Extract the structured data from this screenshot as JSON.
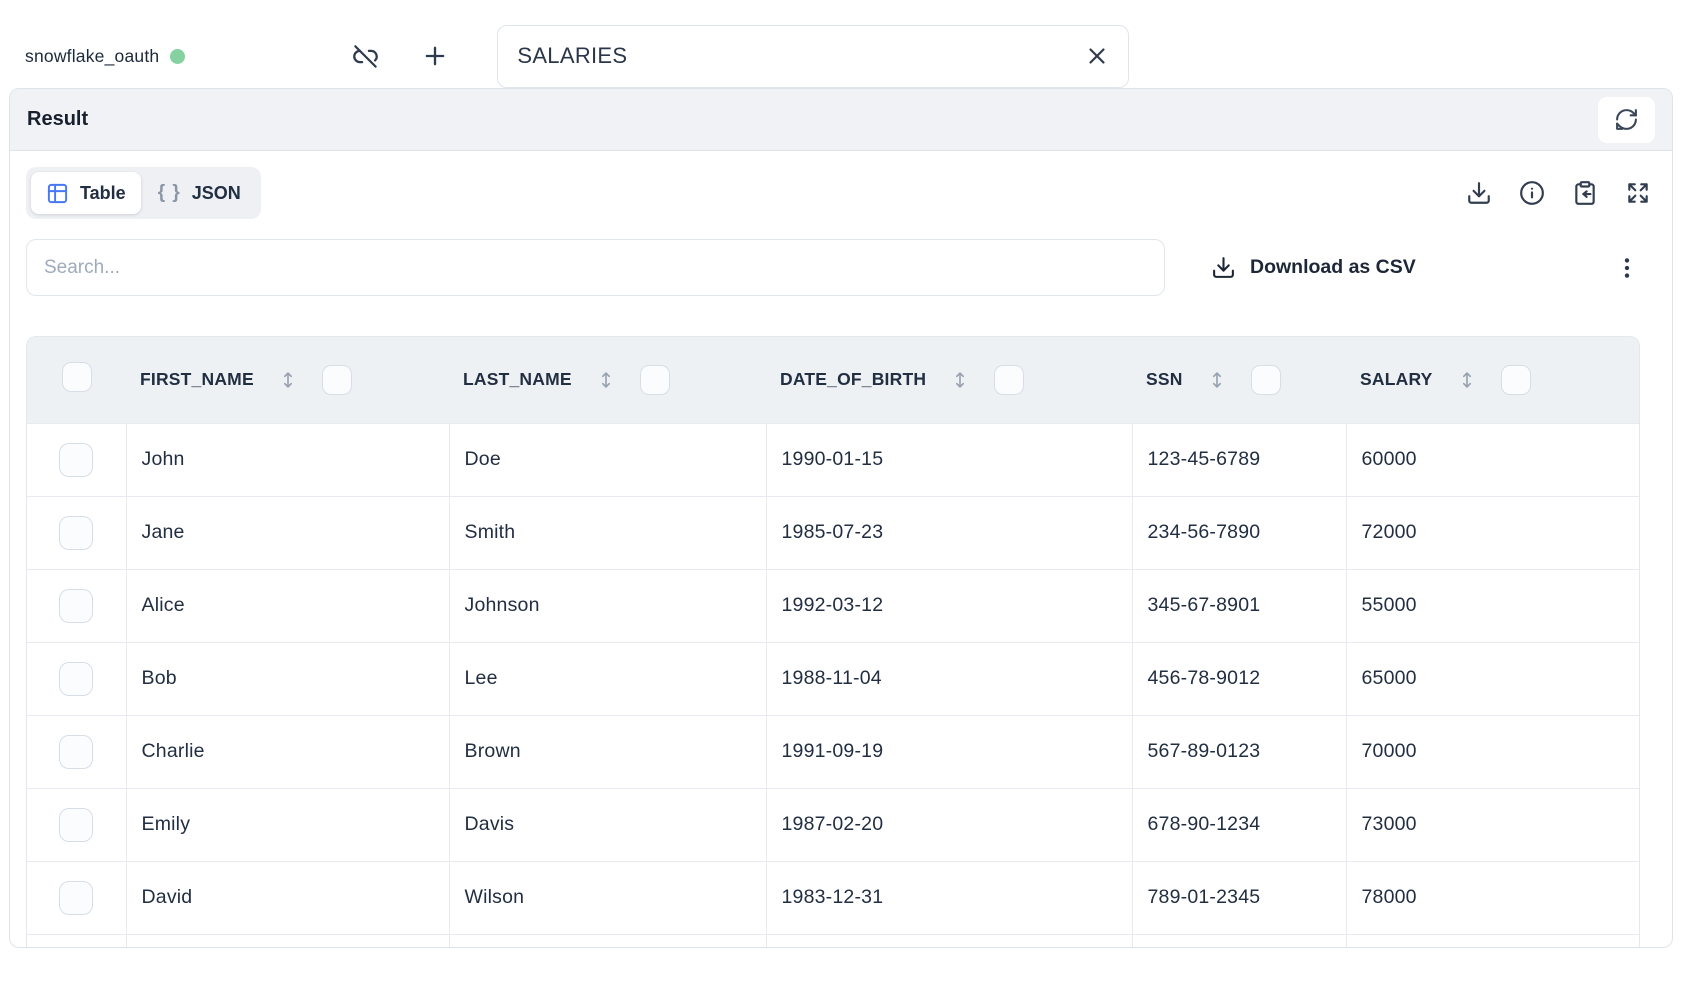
{
  "topbar": {
    "connection": "snowflake_oauth",
    "status_color": "#85d2a0",
    "table_input": "SALARIES"
  },
  "result": {
    "title": "Result"
  },
  "tabs": [
    {
      "label": "Table",
      "icon": "table-grid-icon",
      "active": true
    },
    {
      "label": "JSON",
      "icon": "braces-icon",
      "active": false
    }
  ],
  "search": {
    "placeholder": "Search..."
  },
  "actions": {
    "download_csv": "Download as CSV"
  },
  "accent_colors": {
    "tab_icon_blue": "#4678f2",
    "status_green": "#85d2a0"
  },
  "table": {
    "columns": [
      "FIRST_NAME",
      "LAST_NAME",
      "DATE_OF_BIRTH",
      "SSN",
      "SALARY"
    ],
    "rows": [
      [
        "John",
        "Doe",
        "1990-01-15",
        "123-45-6789",
        "60000"
      ],
      [
        "Jane",
        "Smith",
        "1985-07-23",
        "234-56-7890",
        "72000"
      ],
      [
        "Alice",
        "Johnson",
        "1992-03-12",
        "345-67-8901",
        "55000"
      ],
      [
        "Bob",
        "Lee",
        "1988-11-04",
        "456-78-9012",
        "65000"
      ],
      [
        "Charlie",
        "Brown",
        "1991-09-19",
        "567-89-0123",
        "70000"
      ],
      [
        "Emily",
        "Davis",
        "1987-02-20",
        "678-90-1234",
        "73000"
      ],
      [
        "David",
        "Wilson",
        "1983-12-31",
        "789-01-2345",
        "78000"
      ]
    ]
  }
}
